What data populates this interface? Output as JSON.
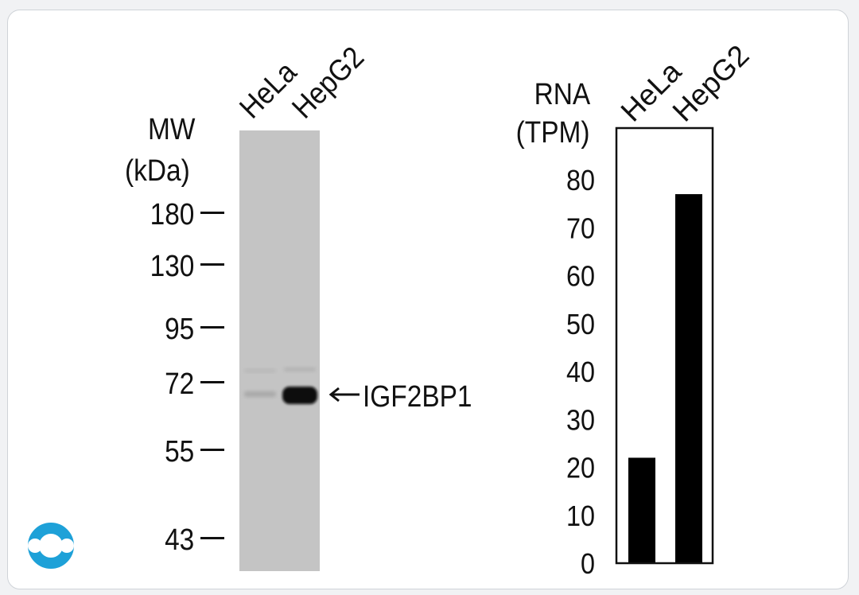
{
  "blot": {
    "mw_title": [
      "MW",
      "(kDa)"
    ],
    "lanes": [
      "HeLa",
      "HepG2"
    ],
    "markers": [
      "180",
      "130",
      "95",
      "72",
      "55",
      "43"
    ],
    "band_label": "IGF2BP1"
  },
  "chart_data": {
    "type": "bar",
    "title": [
      "RNA",
      "(TPM)"
    ],
    "categories": [
      "HeLa",
      "HepG2"
    ],
    "values": [
      22,
      77
    ],
    "ylim": [
      0,
      80
    ],
    "yticks": [
      "0",
      "10",
      "20",
      "30",
      "40",
      "50",
      "60",
      "70",
      "80"
    ],
    "bar_color": "#000000",
    "grid": false
  },
  "logo": {
    "icon": "company-logo-icon",
    "color": "#1ea1d8"
  }
}
